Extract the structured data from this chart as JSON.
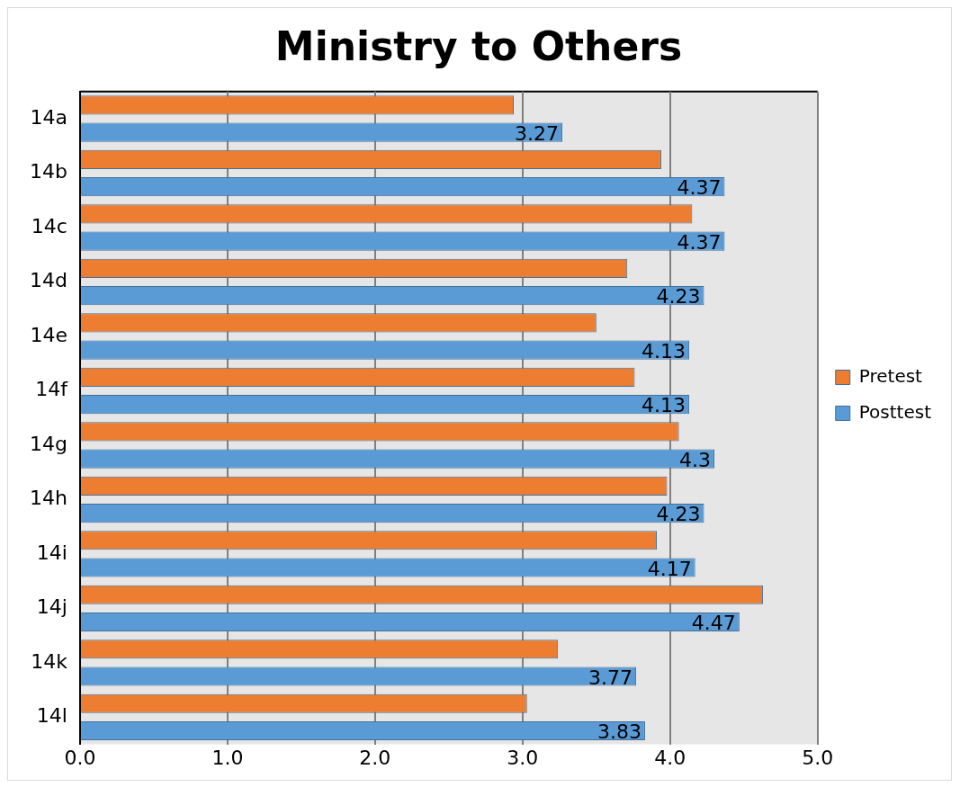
{
  "chart_data": {
    "type": "bar",
    "orientation": "horizontal",
    "title": "Ministry to Others",
    "categories": [
      "14a",
      "14b",
      "14c",
      "14d",
      "14e",
      "14f",
      "14g",
      "14h",
      "14i",
      "14j",
      "14k",
      "14l"
    ],
    "series": [
      {
        "name": "Pretest",
        "color": "#ed7d31",
        "values": [
          2.94,
          3.94,
          4.15,
          3.71,
          3.5,
          3.76,
          4.06,
          3.98,
          3.91,
          4.63,
          3.24,
          3.03
        ]
      },
      {
        "name": "Posttest",
        "color": "#5b9bd5",
        "values": [
          3.27,
          4.37,
          4.37,
          4.23,
          4.13,
          4.13,
          4.3,
          4.23,
          4.17,
          4.47,
          3.77,
          3.83
        ],
        "value_labels": [
          "3.27",
          "4.37",
          "4.37",
          "4.23",
          "4.13",
          "4.13",
          "4.3",
          "4.23",
          "4.17",
          "4.47",
          "3.77",
          "3.83"
        ]
      }
    ],
    "xlim": [
      0,
      5
    ],
    "xticks": [
      {
        "value": 0,
        "label": "0.0"
      },
      {
        "value": 1,
        "label": "1.0"
      },
      {
        "value": 2,
        "label": "2.0"
      },
      {
        "value": 3,
        "label": "3.0"
      },
      {
        "value": 4,
        "label": "4.0"
      },
      {
        "value": 5,
        "label": "5.0"
      }
    ],
    "grid": "x",
    "legend": "right"
  }
}
